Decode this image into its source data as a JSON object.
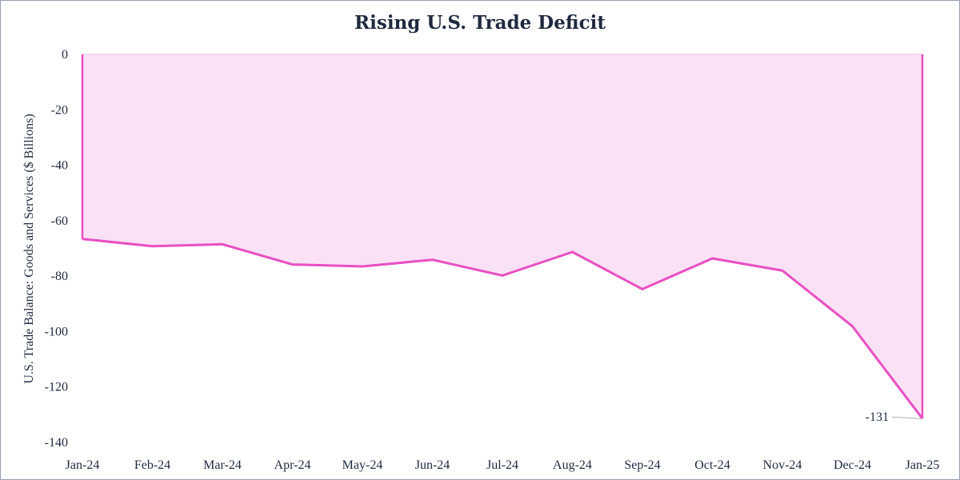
{
  "chart_data": {
    "type": "area",
    "title": "Rising U.S. Trade Deficit",
    "xlabel": "",
    "ylabel": "U.S. Trade Balance: Goods and Services ($ Billions)",
    "categories": [
      "Jan-24",
      "Feb-24",
      "Mar-24",
      "Apr-24",
      "May-24",
      "Jun-24",
      "Jul-24",
      "Aug-24",
      "Sep-24",
      "Oct-24",
      "Nov-24",
      "Dec-24",
      "Jan-25"
    ],
    "series": [
      {
        "values": [
          -66.6,
          -69.2,
          -68.5,
          -75.8,
          -76.5,
          -74.1,
          -79.8,
          -71.3,
          -84.7,
          -73.6,
          -78.0,
          -98.1,
          -131.4
        ]
      }
    ],
    "ylim": [
      -140,
      0
    ],
    "yticks": [
      0,
      -20,
      -40,
      -60,
      -80,
      -100,
      -120,
      -140
    ],
    "data_labels": [
      {
        "index": 12,
        "text": "-131"
      }
    ],
    "grid": false,
    "legend": "none",
    "colors": {
      "line": "#e94fc3",
      "fill": "#fae1f5",
      "text": "#1f2a40",
      "leader": "#b0b0b0"
    }
  }
}
